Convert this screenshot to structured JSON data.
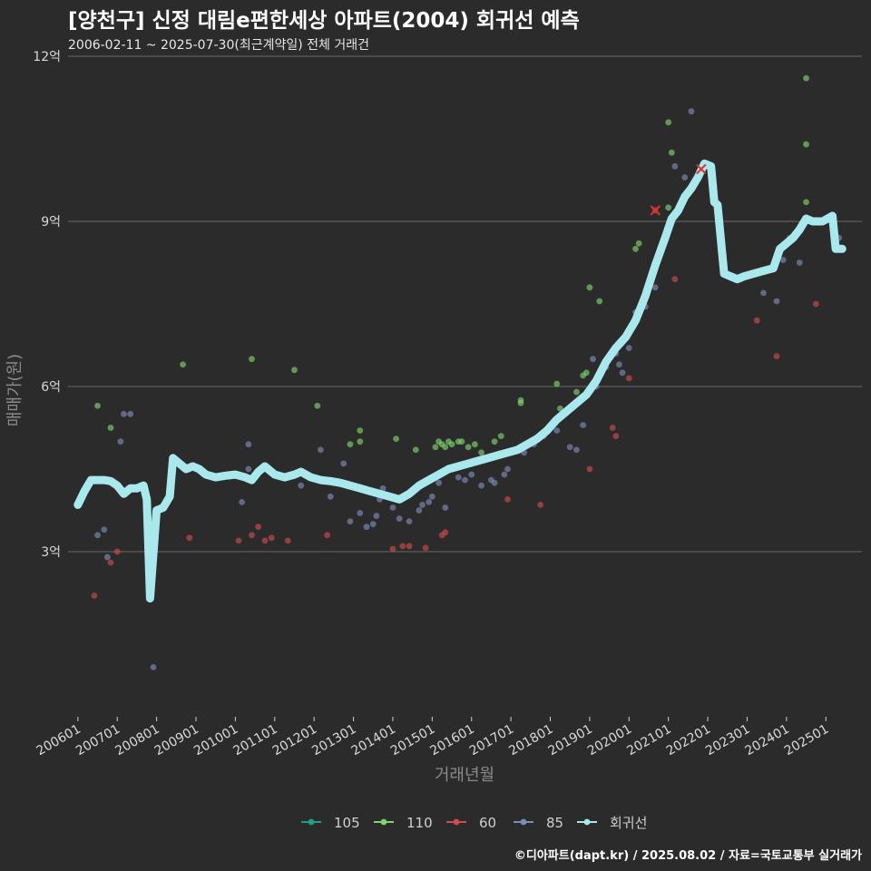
{
  "chart_data": {
    "type": "scatter",
    "title": "[양천구] 신정 대림e편한세상 아파트(2004) 회귀선 예측",
    "subtitle": "2006-02-11 ~ 2025-07-30(최근계약일) 전체 거래건",
    "xlabel": "거래년월",
    "ylabel": "매매가(원)",
    "caption": "©디아파트(dapt.kr) / 2025.08.02 / 자료=국토교통부 실거래가",
    "x_range": [
      "2005-10",
      "2025-12"
    ],
    "ylim": [
      0.0,
      12.0
    ],
    "y_unit": "억",
    "x_ticks": [
      "200601",
      "200701",
      "200801",
      "200901",
      "201001",
      "201101",
      "201201",
      "201301",
      "201401",
      "201501",
      "201601",
      "201701",
      "201801",
      "201901",
      "202001",
      "202101",
      "202201",
      "202301",
      "202401",
      "202501"
    ],
    "y_ticks": [
      {
        "value": 3,
        "label": "3억"
      },
      {
        "value": 6,
        "label": "6억"
      },
      {
        "value": 9,
        "label": "9억"
      },
      {
        "value": 12,
        "label": "12억"
      }
    ],
    "grid": true,
    "legend_position": "bottom",
    "series": [
      {
        "name": "105",
        "color": "#1fa187",
        "points": []
      },
      {
        "name": "110",
        "color": "#7fd36b",
        "points": [
          [
            "2006-07",
            5.65
          ],
          [
            "2006-11",
            5.25
          ],
          [
            "2008-09",
            6.4
          ],
          [
            "2010-06",
            6.5
          ],
          [
            "2011-07",
            6.3
          ],
          [
            "2012-02",
            5.65
          ],
          [
            "2012-12",
            4.95
          ],
          [
            "2013-03",
            5.2
          ],
          [
            "2013-03",
            5.0
          ],
          [
            "2014-02",
            5.05
          ],
          [
            "2014-08",
            4.85
          ],
          [
            "2015-02",
            4.9
          ],
          [
            "2015-03",
            5.0
          ],
          [
            "2015-04",
            4.95
          ],
          [
            "2015-05",
            4.9
          ],
          [
            "2015-06",
            5.0
          ],
          [
            "2015-07",
            4.95
          ],
          [
            "2015-09",
            5.0
          ],
          [
            "2015-10",
            5.0
          ],
          [
            "2015-12",
            4.9
          ],
          [
            "2016-02",
            4.95
          ],
          [
            "2016-04",
            4.8
          ],
          [
            "2016-08",
            5.0
          ],
          [
            "2016-10",
            5.1
          ],
          [
            "2017-04",
            5.7
          ],
          [
            "2017-04",
            5.75
          ],
          [
            "2018-03",
            6.05
          ],
          [
            "2018-04",
            5.6
          ],
          [
            "2018-09",
            5.9
          ],
          [
            "2018-11",
            6.2
          ],
          [
            "2018-12",
            6.25
          ],
          [
            "2019-01",
            7.8
          ],
          [
            "2019-04",
            7.55
          ],
          [
            "2020-03",
            8.5
          ],
          [
            "2020-04",
            8.6
          ],
          [
            "2021-01",
            9.25
          ],
          [
            "2021-01",
            10.8
          ],
          [
            "2021-02",
            10.25
          ],
          [
            "2024-07",
            10.4
          ],
          [
            "2024-07",
            11.6
          ],
          [
            "2024-07",
            9.35
          ]
        ]
      },
      {
        "name": "60",
        "color": "#d04a4a",
        "points": [
          [
            "2006-06",
            2.2
          ],
          [
            "2006-11",
            2.8
          ],
          [
            "2007-01",
            3.0
          ],
          [
            "2008-11",
            3.25
          ],
          [
            "2010-02",
            3.2
          ],
          [
            "2010-06",
            3.3
          ],
          [
            "2010-08",
            3.45
          ],
          [
            "2010-10",
            3.2
          ],
          [
            "2010-12",
            3.25
          ],
          [
            "2011-05",
            3.2
          ],
          [
            "2012-05",
            3.3
          ],
          [
            "2014-01",
            3.05
          ],
          [
            "2014-04",
            3.1
          ],
          [
            "2014-06",
            3.1
          ],
          [
            "2014-11",
            3.07
          ],
          [
            "2015-04",
            3.3
          ],
          [
            "2015-05",
            3.35
          ],
          [
            "2016-12",
            3.95
          ],
          [
            "2017-10",
            3.85
          ],
          [
            "2019-01",
            4.5
          ],
          [
            "2019-08",
            5.25
          ],
          [
            "2019-09",
            5.1
          ],
          [
            "2020-01",
            6.15
          ],
          [
            "2020-09",
            9.2
          ],
          [
            "2021-03",
            7.95
          ],
          [
            "2021-11",
            9.95
          ],
          [
            "2023-04",
            7.2
          ],
          [
            "2023-10",
            6.55
          ],
          [
            "2024-10",
            7.5
          ]
        ]
      },
      {
        "name": "85",
        "color": "#7c8bb5",
        "points": [
          [
            "2006-07",
            3.3
          ],
          [
            "2006-09",
            3.4
          ],
          [
            "2006-10",
            2.9
          ],
          [
            "2007-02",
            5.0
          ],
          [
            "2007-03",
            5.5
          ],
          [
            "2007-05",
            5.5
          ],
          [
            "2007-12",
            0.9
          ],
          [
            "2009-12",
            4.4
          ],
          [
            "2010-03",
            3.9
          ],
          [
            "2010-05",
            4.95
          ],
          [
            "2010-05",
            4.5
          ],
          [
            "2011-09",
            4.2
          ],
          [
            "2012-03",
            4.85
          ],
          [
            "2012-06",
            4.0
          ],
          [
            "2012-10",
            4.6
          ],
          [
            "2012-12",
            3.55
          ],
          [
            "2013-03",
            3.7
          ],
          [
            "2013-05",
            3.45
          ],
          [
            "2013-07",
            3.5
          ],
          [
            "2013-08",
            3.65
          ],
          [
            "2013-09",
            3.95
          ],
          [
            "2013-10",
            4.15
          ],
          [
            "2014-01",
            3.8
          ],
          [
            "2014-03",
            3.6
          ],
          [
            "2014-06",
            3.55
          ],
          [
            "2014-09",
            3.75
          ],
          [
            "2014-10",
            3.85
          ],
          [
            "2014-12",
            3.9
          ],
          [
            "2015-01",
            4.0
          ],
          [
            "2015-03",
            4.25
          ],
          [
            "2015-05",
            3.8
          ],
          [
            "2015-07",
            4.5
          ],
          [
            "2015-09",
            4.35
          ],
          [
            "2015-11",
            4.3
          ],
          [
            "2016-01",
            4.4
          ],
          [
            "2016-04",
            4.2
          ],
          [
            "2016-07",
            4.3
          ],
          [
            "2016-08",
            4.25
          ],
          [
            "2016-11",
            4.4
          ],
          [
            "2016-12",
            4.5
          ],
          [
            "2017-05",
            4.8
          ],
          [
            "2017-08",
            4.95
          ],
          [
            "2017-11",
            5.1
          ],
          [
            "2018-03",
            5.2
          ],
          [
            "2018-07",
            4.9
          ],
          [
            "2018-09",
            4.85
          ],
          [
            "2018-11",
            5.3
          ],
          [
            "2019-02",
            6.5
          ],
          [
            "2019-03",
            6.0
          ],
          [
            "2019-06",
            6.35
          ],
          [
            "2019-09",
            6.6
          ],
          [
            "2019-10",
            6.4
          ],
          [
            "2019-11",
            6.25
          ],
          [
            "2020-01",
            6.7
          ],
          [
            "2020-03",
            7.35
          ],
          [
            "2020-06",
            7.45
          ],
          [
            "2020-09",
            7.8
          ],
          [
            "2021-03",
            10.0
          ],
          [
            "2021-06",
            9.8
          ],
          [
            "2021-08",
            11.0
          ],
          [
            "2022-04",
            9.1
          ],
          [
            "2023-06",
            7.7
          ],
          [
            "2023-10",
            7.55
          ],
          [
            "2023-12",
            8.3
          ],
          [
            "2024-02",
            8.7
          ],
          [
            "2024-05",
            8.25
          ],
          [
            "2024-09",
            9.0
          ],
          [
            "2025-05",
            8.7
          ]
        ]
      }
    ],
    "regression": {
      "name": "회귀선",
      "color": "#a9e9ee",
      "points": [
        [
          "2006-01",
          3.85
        ],
        [
          "2006-03",
          4.1
        ],
        [
          "2006-05",
          4.3
        ],
        [
          "2006-07",
          4.3
        ],
        [
          "2006-09",
          4.3
        ],
        [
          "2006-11",
          4.28
        ],
        [
          "2007-01",
          4.2
        ],
        [
          "2007-03",
          4.05
        ],
        [
          "2007-05",
          4.15
        ],
        [
          "2007-07",
          4.15
        ],
        [
          "2007-09",
          4.2
        ],
        [
          "2007-10",
          3.95
        ],
        [
          "2007-11",
          2.15
        ],
        [
          "2008-01",
          3.75
        ],
        [
          "2008-03",
          3.8
        ],
        [
          "2008-05",
          4.0
        ],
        [
          "2008-06",
          4.7
        ],
        [
          "2008-08",
          4.6
        ],
        [
          "2008-10",
          4.5
        ],
        [
          "2008-12",
          4.55
        ],
        [
          "2009-02",
          4.5
        ],
        [
          "2009-04",
          4.4
        ],
        [
          "2009-07",
          4.35
        ],
        [
          "2009-10",
          4.38
        ],
        [
          "2010-01",
          4.4
        ],
        [
          "2010-04",
          4.35
        ],
        [
          "2010-06",
          4.3
        ],
        [
          "2010-08",
          4.45
        ],
        [
          "2010-10",
          4.55
        ],
        [
          "2011-01",
          4.4
        ],
        [
          "2011-04",
          4.35
        ],
        [
          "2011-07",
          4.4
        ],
        [
          "2011-09",
          4.45
        ],
        [
          "2011-12",
          4.35
        ],
        [
          "2012-03",
          4.3
        ],
        [
          "2012-06",
          4.28
        ],
        [
          "2012-09",
          4.25
        ],
        [
          "2012-12",
          4.2
        ],
        [
          "2013-03",
          4.15
        ],
        [
          "2013-06",
          4.1
        ],
        [
          "2013-09",
          4.05
        ],
        [
          "2013-12",
          4.0
        ],
        [
          "2014-03",
          3.95
        ],
        [
          "2014-06",
          4.05
        ],
        [
          "2014-09",
          4.2
        ],
        [
          "2014-12",
          4.3
        ],
        [
          "2015-03",
          4.4
        ],
        [
          "2015-06",
          4.5
        ],
        [
          "2015-09",
          4.55
        ],
        [
          "2015-12",
          4.6
        ],
        [
          "2016-03",
          4.65
        ],
        [
          "2016-06",
          4.7
        ],
        [
          "2016-09",
          4.75
        ],
        [
          "2016-12",
          4.8
        ],
        [
          "2017-03",
          4.85
        ],
        [
          "2017-06",
          4.95
        ],
        [
          "2017-09",
          5.05
        ],
        [
          "2017-12",
          5.2
        ],
        [
          "2018-03",
          5.4
        ],
        [
          "2018-06",
          5.55
        ],
        [
          "2018-09",
          5.7
        ],
        [
          "2018-12",
          5.85
        ],
        [
          "2019-03",
          6.1
        ],
        [
          "2019-06",
          6.45
        ],
        [
          "2019-09",
          6.7
        ],
        [
          "2019-12",
          6.9
        ],
        [
          "2020-03",
          7.2
        ],
        [
          "2020-06",
          7.65
        ],
        [
          "2020-09",
          8.2
        ],
        [
          "2020-12",
          8.7
        ],
        [
          "2021-02",
          9.05
        ],
        [
          "2021-04",
          9.2
        ],
        [
          "2021-06",
          9.45
        ],
        [
          "2021-08",
          9.6
        ],
        [
          "2021-10",
          9.8
        ],
        [
          "2021-12",
          10.05
        ],
        [
          "2022-02",
          10.0
        ],
        [
          "2022-03",
          9.35
        ],
        [
          "2022-04",
          9.3
        ],
        [
          "2022-06",
          8.05
        ],
        [
          "2022-08",
          8.0
        ],
        [
          "2022-10",
          7.95
        ],
        [
          "2022-12",
          8.0
        ],
        [
          "2023-03",
          8.05
        ],
        [
          "2023-06",
          8.1
        ],
        [
          "2023-09",
          8.15
        ],
        [
          "2023-11",
          8.5
        ],
        [
          "2024-01",
          8.6
        ],
        [
          "2024-03",
          8.7
        ],
        [
          "2024-05",
          8.85
        ],
        [
          "2024-07",
          9.05
        ],
        [
          "2024-09",
          9.0
        ],
        [
          "2024-12",
          9.0
        ],
        [
          "2025-03",
          9.1
        ],
        [
          "2025-04",
          8.5
        ],
        [
          "2025-06",
          8.5
        ]
      ]
    },
    "highlight_points": [
      [
        "2020-09",
        9.2
      ],
      [
        "2021-11",
        9.95
      ]
    ],
    "legend": [
      {
        "name": "105",
        "color": "#1fa187",
        "icon": "line-dot"
      },
      {
        "name": "110",
        "color": "#7fd36b",
        "icon": "line-dot"
      },
      {
        "name": "60",
        "color": "#d04a4a",
        "icon": "line-dot"
      },
      {
        "name": "85",
        "color": "#7c8bb5",
        "icon": "line-dot"
      },
      {
        "name": "회귀선",
        "color": "#a9e9ee",
        "icon": "line-dot"
      }
    ]
  }
}
